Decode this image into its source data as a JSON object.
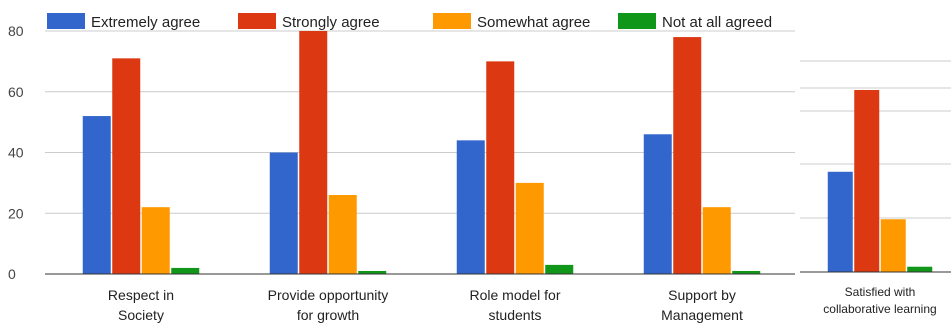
{
  "chart_data": [
    {
      "type": "bar",
      "categories": [
        "Respect in Society",
        "Provide opportunity for growth",
        "Role model for students",
        "Support by Management"
      ],
      "series": [
        {
          "name": "Extremely agree",
          "color": "#3366cc",
          "values": [
            52,
            40,
            44,
            46
          ]
        },
        {
          "name": "Strongly agree",
          "color": "#dc3912",
          "values": [
            71,
            80,
            70,
            78
          ]
        },
        {
          "name": "Somewhat agree",
          "color": "#ff9900",
          "values": [
            22,
            26,
            30,
            22
          ]
        },
        {
          "name": "Not at all agreed",
          "color": "#109618",
          "values": [
            2,
            1,
            3,
            1
          ]
        }
      ],
      "ylim": [
        0,
        80
      ],
      "yticks": [
        0,
        20,
        40,
        60,
        80
      ],
      "grid": true,
      "legend": "top"
    },
    {
      "type": "bar",
      "categories": [
        "Satisfied with collaborative learning"
      ],
      "series": [
        {
          "name": "Extremely agree",
          "color": "#3366cc",
          "values": [
            38
          ]
        },
        {
          "name": "Strongly agree",
          "color": "#dc3912",
          "values": [
            69
          ]
        },
        {
          "name": "Somewhat agree",
          "color": "#ff9900",
          "values": [
            20
          ]
        },
        {
          "name": "Not at all agreed",
          "color": "#109618",
          "values": [
            2
          ]
        }
      ],
      "ylim": [
        0,
        80
      ],
      "grid": true
    }
  ]
}
